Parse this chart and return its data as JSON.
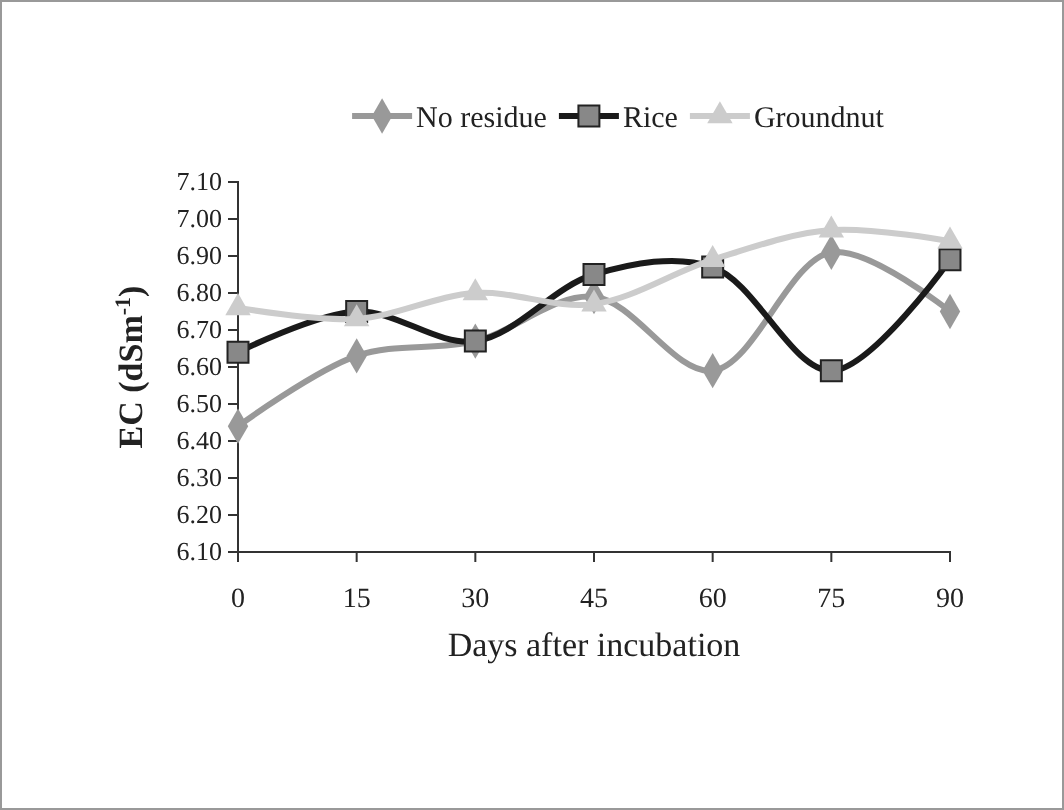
{
  "chart_data": {
    "type": "line",
    "ylabel": "EC (dSm$^{-1}$)",
    "xlabel": "Days after incubation",
    "x": [
      0,
      15,
      30,
      45,
      60,
      75,
      90
    ],
    "xlim": [
      0,
      90
    ],
    "xticks": [
      0,
      15,
      30,
      45,
      60,
      75,
      90
    ],
    "ylim": [
      6.1,
      7.1
    ],
    "yticks": [
      {
        "value": 6.1,
        "label": "6.10"
      },
      {
        "value": 6.2,
        "label": "6.20"
      },
      {
        "value": 6.3,
        "label": "6.30"
      },
      {
        "value": 6.4,
        "label": "6.40"
      },
      {
        "value": 6.5,
        "label": "6.50"
      },
      {
        "value": 6.6,
        "label": "6.60"
      },
      {
        "value": 6.7,
        "label": "6.70"
      },
      {
        "value": 6.8,
        "label": "6.80"
      },
      {
        "value": 6.9,
        "label": "6.90"
      },
      {
        "value": 7.0,
        "label": "7.00"
      },
      {
        "value": 7.1,
        "label": "7.10"
      }
    ],
    "grid": false,
    "legend": "top",
    "line_style": "solid",
    "series": [
      {
        "name": "No residue",
        "color": "#999999",
        "marker": "diamond",
        "values": [
          6.44,
          6.63,
          6.67,
          6.79,
          6.59,
          6.91,
          6.75
        ]
      },
      {
        "name": "Rice",
        "color": "#1a1a1a",
        "marker": "square",
        "values": [
          6.64,
          6.75,
          6.67,
          6.85,
          6.87,
          6.59,
          6.89
        ]
      },
      {
        "name": "Groundnut",
        "color": "#cccccc",
        "marker": "triangle",
        "values": [
          6.76,
          6.73,
          6.8,
          6.77,
          6.89,
          6.97,
          6.94
        ]
      }
    ]
  }
}
